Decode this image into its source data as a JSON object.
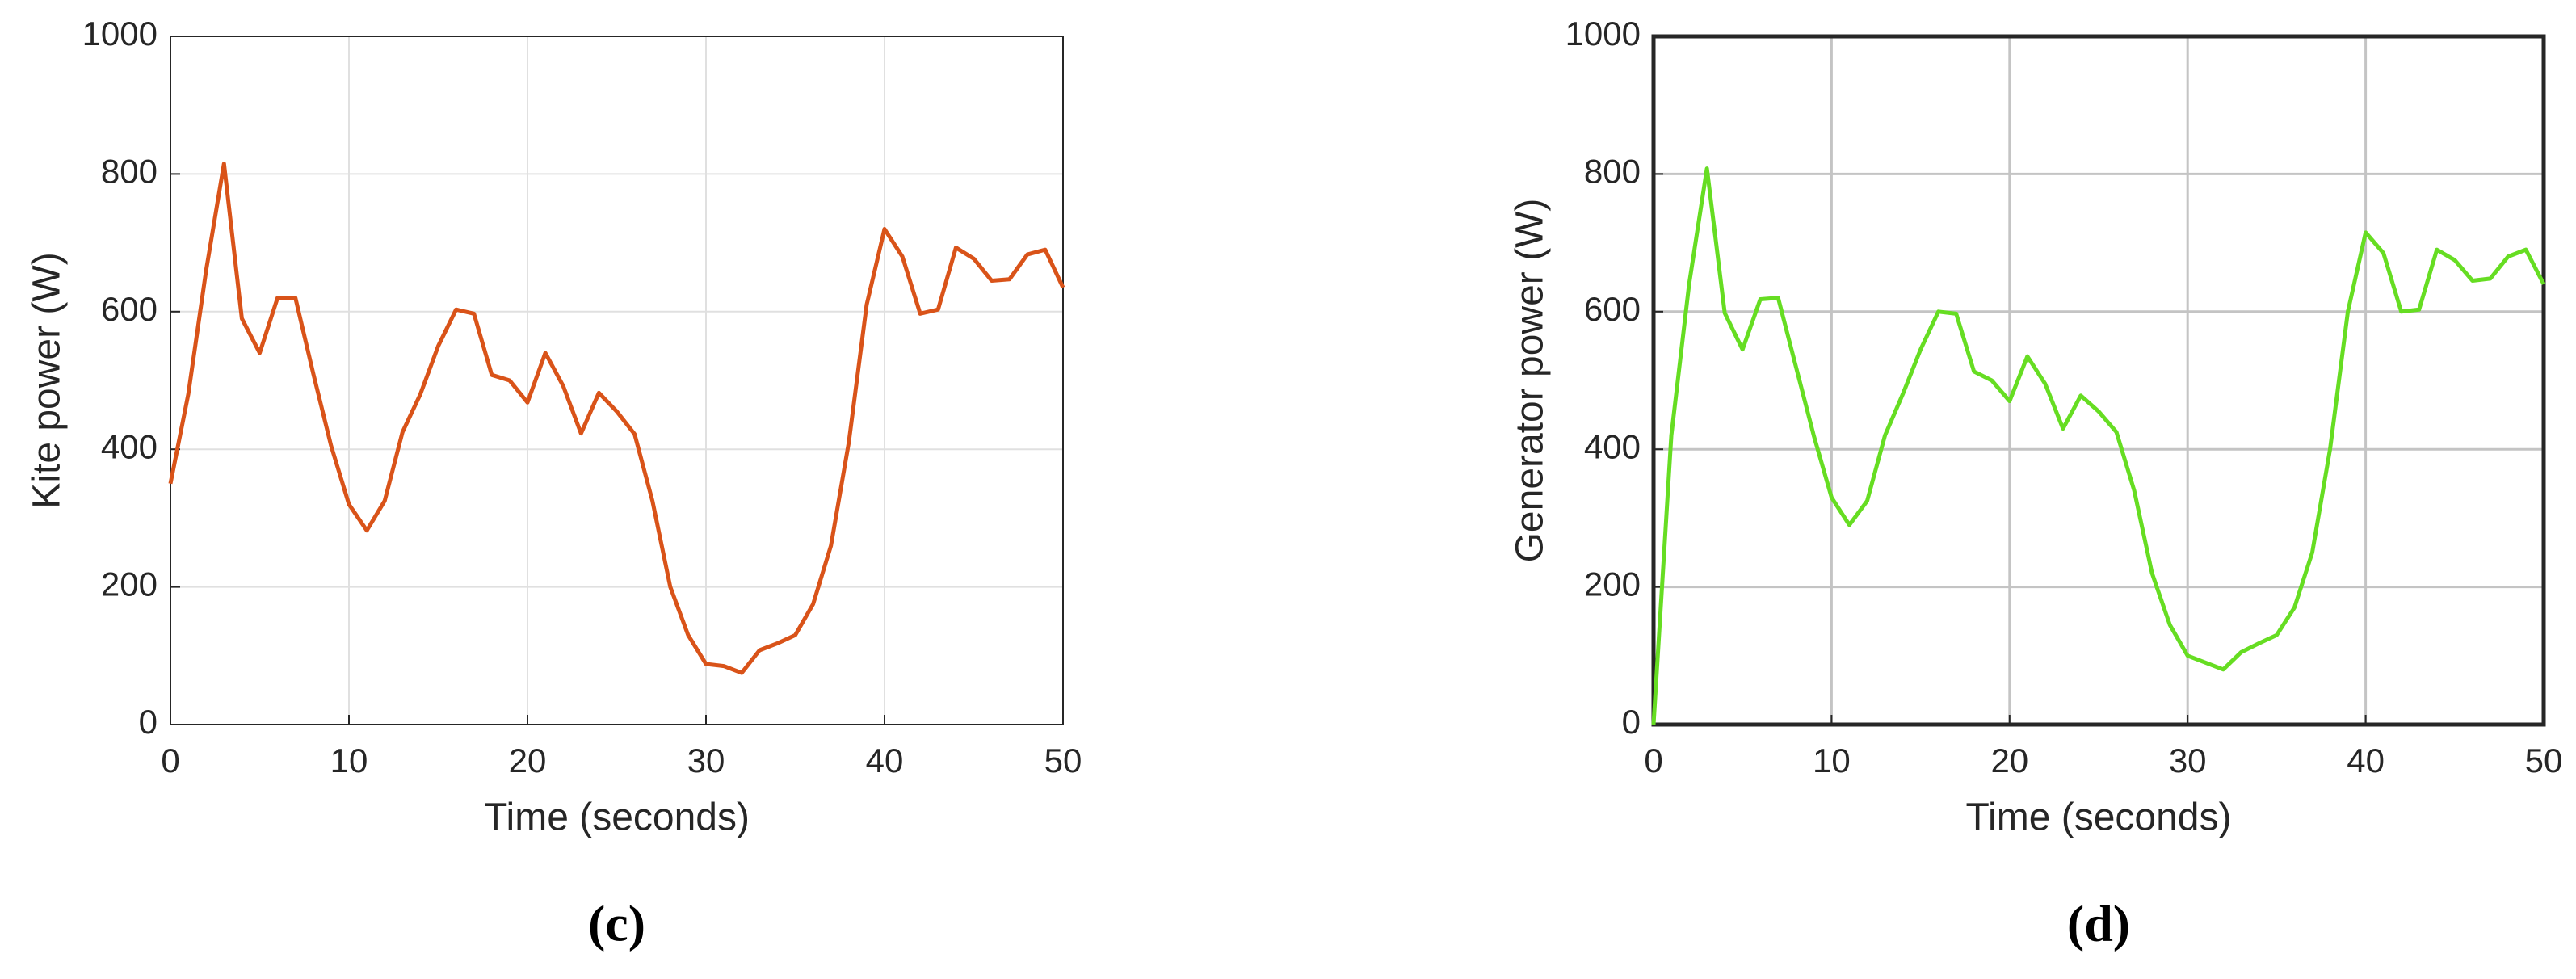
{
  "chart_data": [
    {
      "type": "line",
      "xlabel": "Time (seconds)",
      "ylabel": "Kite power (W)",
      "caption": "(c)",
      "color": "#d95319",
      "grid": true,
      "x": [
        0,
        1,
        2,
        3,
        4,
        5,
        6,
        7,
        8,
        9,
        10,
        11,
        12,
        13,
        14,
        15,
        16,
        17,
        18,
        19,
        20,
        21,
        22,
        23,
        24,
        25,
        26,
        27,
        28,
        29,
        30,
        31,
        32,
        33,
        34,
        35,
        36,
        37,
        38,
        39,
        40,
        41,
        42,
        43,
        44,
        45,
        46,
        47,
        48,
        49,
        50
      ],
      "values": [
        350,
        480,
        660,
        815,
        590,
        540,
        620,
        620,
        510,
        405,
        320,
        282,
        325,
        425,
        480,
        550,
        603,
        597,
        508,
        500,
        468,
        540,
        492,
        423,
        482,
        455,
        422,
        325,
        200,
        130,
        88,
        85,
        75,
        108,
        118,
        130,
        175,
        260,
        410,
        610,
        720,
        680,
        597,
        603,
        693,
        677,
        645,
        647,
        683,
        690,
        635
      ],
      "xlim": [
        0,
        50
      ],
      "xticks": [
        0,
        10,
        20,
        30,
        40,
        50
      ],
      "ylim": [
        0,
        1000
      ],
      "yticks": [
        0,
        200,
        400,
        600,
        800,
        1000
      ]
    },
    {
      "type": "line",
      "xlabel": "Time (seconds)",
      "ylabel": "Generator power (W)",
      "caption": "(d)",
      "color": "#66dd22",
      "grid": true,
      "x": [
        0,
        1,
        2,
        3,
        4,
        5,
        6,
        7,
        8,
        9,
        10,
        11,
        12,
        13,
        14,
        15,
        16,
        17,
        18,
        19,
        20,
        21,
        22,
        23,
        24,
        25,
        26,
        27,
        28,
        29,
        30,
        31,
        32,
        33,
        34,
        35,
        36,
        37,
        38,
        39,
        40,
        41,
        42,
        43,
        44,
        45,
        46,
        47,
        48,
        49,
        50
      ],
      "values": [
        0,
        420,
        640,
        808,
        598,
        545,
        618,
        620,
        520,
        420,
        330,
        290,
        325,
        420,
        480,
        545,
        600,
        597,
        513,
        500,
        470,
        535,
        495,
        430,
        478,
        455,
        425,
        340,
        220,
        145,
        100,
        90,
        80,
        105,
        118,
        130,
        170,
        250,
        400,
        600,
        715,
        685,
        600,
        603,
        690,
        675,
        645,
        648,
        680,
        690,
        640
      ],
      "xlim": [
        0,
        50
      ],
      "xticks": [
        0,
        10,
        20,
        30,
        40,
        50
      ],
      "ylim": [
        0,
        1000
      ],
      "yticks": [
        0,
        200,
        400,
        600,
        800,
        1000
      ]
    }
  ]
}
